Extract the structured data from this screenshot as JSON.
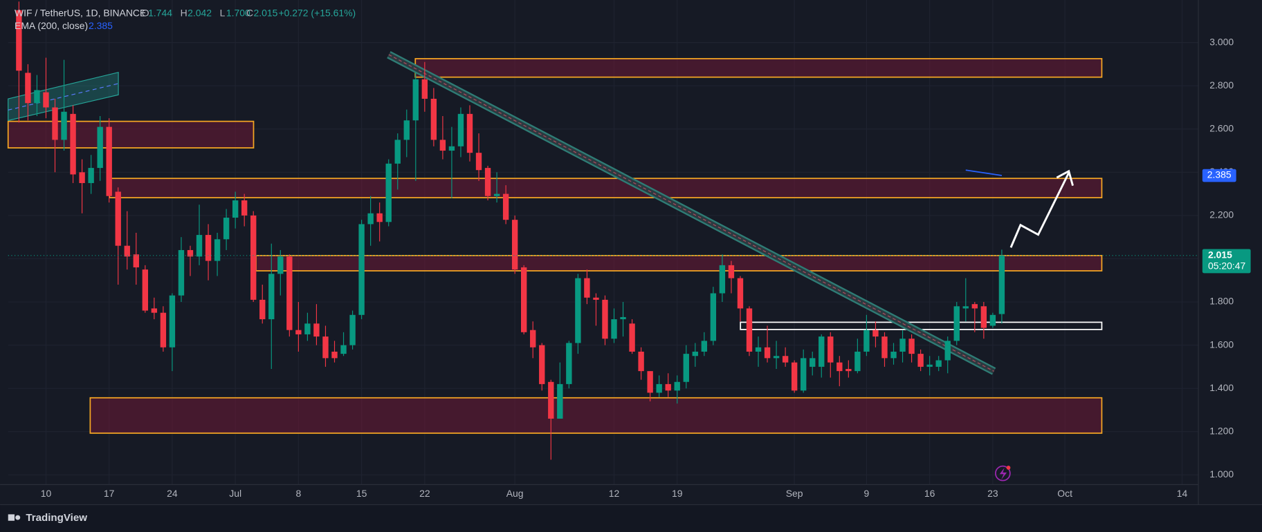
{
  "header": {
    "symbol": "WIF / TetherUS, 1D, BINANCE",
    "ohlc": [
      {
        "key": "O",
        "value": "1.744"
      },
      {
        "key": "H",
        "value": "2.042"
      },
      {
        "key": "L",
        "value": "1.700"
      },
      {
        "key": "C",
        "value": "2.015"
      }
    ],
    "change": "+0.272 (+15.61%)"
  },
  "brand": "TradingView",
  "countdown": "05:20:47",
  "chart_data": {
    "type": "candlestick",
    "up_color": "#089981",
    "down_color": "#f23645",
    "grid": true,
    "x": [
      7,
      8,
      9,
      10,
      11,
      12,
      13,
      14,
      15,
      16,
      17,
      18,
      19,
      20,
      21,
      22,
      23,
      24,
      25,
      26,
      27,
      28,
      29,
      30,
      31,
      32,
      33,
      34,
      35,
      36,
      37,
      38,
      39,
      40,
      41,
      42,
      43,
      44,
      45,
      46,
      47,
      48,
      49,
      50,
      51,
      52,
      53,
      54,
      55,
      56,
      57,
      58,
      59,
      60,
      61,
      62,
      63,
      64,
      65,
      66,
      67,
      68,
      69,
      70,
      71,
      72,
      73,
      74,
      75,
      76,
      77,
      78,
      79,
      80,
      81,
      82,
      83,
      84,
      85,
      86,
      87,
      88,
      89,
      90,
      91,
      92,
      93,
      94,
      95,
      96,
      97,
      98,
      99,
      100,
      101,
      102,
      103,
      104,
      105,
      106,
      107,
      108,
      109,
      110,
      111,
      112,
      113,
      114,
      115,
      116
    ],
    "open": [
      3.15,
      2.86,
      2.72,
      2.77,
      2.7,
      2.55,
      2.67,
      2.4,
      2.35,
      2.42,
      2.61,
      2.31,
      2.06,
      2.02,
      1.95,
      1.77,
      1.75,
      1.59,
      1.83,
      2.04,
      2.01,
      2.11,
      1.99,
      2.09,
      2.19,
      2.27,
      2.2,
      1.81,
      1.72,
      1.93,
      2.01,
      1.67,
      1.65,
      1.7,
      1.64,
      1.57,
      1.56,
      1.6,
      1.74,
      2.16,
      2.21,
      2.17,
      2.44,
      2.55,
      2.64,
      2.83,
      2.74,
      2.55,
      2.5,
      2.52,
      2.67,
      2.49,
      2.42,
      2.29,
      2.3,
      2.18,
      1.96,
      1.67,
      1.6,
      1.43,
      1.26,
      1.42,
      1.61,
      1.91,
      1.82,
      1.81,
      1.63,
      1.72,
      1.7,
      1.57,
      1.48,
      1.38,
      1.42,
      1.39,
      1.43,
      1.55,
      1.57,
      1.62,
      1.84,
      1.97,
      1.91,
      1.77,
      1.57,
      1.59,
      1.54,
      1.55,
      1.52,
      1.39,
      1.5,
      1.5,
      1.64,
      1.52,
      1.49,
      1.48,
      1.57,
      1.67,
      1.64,
      1.54,
      1.57,
      1.63,
      1.56,
      1.5,
      1.5,
      1.53,
      1.62,
      1.77,
      1.79,
      1.78,
      1.69,
      1.744
    ],
    "high": [
      3.19,
      2.9,
      2.85,
      2.93,
      2.74,
      2.92,
      2.71,
      2.46,
      2.48,
      2.66,
      2.65,
      2.33,
      2.22,
      2.12,
      1.97,
      1.82,
      1.78,
      1.84,
      2.1,
      2.06,
      2.25,
      2.16,
      2.12,
      2.23,
      2.31,
      2.3,
      2.22,
      1.88,
      2.07,
      2.04,
      2.02,
      1.8,
      1.75,
      1.79,
      1.69,
      1.62,
      1.66,
      1.76,
      2.18,
      2.29,
      2.26,
      2.46,
      2.58,
      2.69,
      2.86,
      2.91,
      2.79,
      2.66,
      2.61,
      2.7,
      2.71,
      2.58,
      2.43,
      2.4,
      2.34,
      2.2,
      1.97,
      1.71,
      1.61,
      1.44,
      1.52,
      1.62,
      1.93,
      1.95,
      1.84,
      1.83,
      1.77,
      1.8,
      1.72,
      1.59,
      1.48,
      1.46,
      1.47,
      1.46,
      1.6,
      1.61,
      1.66,
      1.87,
      2.02,
      1.99,
      1.92,
      1.78,
      1.64,
      1.69,
      1.62,
      1.59,
      1.53,
      1.58,
      1.57,
      1.65,
      1.66,
      1.55,
      1.53,
      1.63,
      1.74,
      1.71,
      1.66,
      1.61,
      1.67,
      1.65,
      1.58,
      1.55,
      1.55,
      1.64,
      1.8,
      1.91,
      1.8,
      1.8,
      1.75,
      2.042
    ],
    "low": [
      2.63,
      2.64,
      2.66,
      2.65,
      2.4,
      2.5,
      2.35,
      2.21,
      2.3,
      2.36,
      2.26,
      1.88,
      1.95,
      1.88,
      1.75,
      1.72,
      1.57,
      1.48,
      1.8,
      1.92,
      1.97,
      1.9,
      1.92,
      2.04,
      2.14,
      2.15,
      1.8,
      1.7,
      1.49,
      1.83,
      1.64,
      1.57,
      1.62,
      1.6,
      1.5,
      1.52,
      1.55,
      1.58,
      1.72,
      2.06,
      2.08,
      2.15,
      2.32,
      2.47,
      2.36,
      2.68,
      2.52,
      2.46,
      2.28,
      2.47,
      2.45,
      2.36,
      2.27,
      2.26,
      2.16,
      1.93,
      1.65,
      1.54,
      1.39,
      1.07,
      1.26,
      1.4,
      1.56,
      1.79,
      1.69,
      1.6,
      1.61,
      1.64,
      1.56,
      1.44,
      1.34,
      1.36,
      1.36,
      1.33,
      1.4,
      1.5,
      1.55,
      1.6,
      1.8,
      1.84,
      1.71,
      1.55,
      1.5,
      1.52,
      1.49,
      1.5,
      1.38,
      1.38,
      1.46,
      1.45,
      1.45,
      1.41,
      1.45,
      1.47,
      1.55,
      1.59,
      1.5,
      1.51,
      1.52,
      1.52,
      1.48,
      1.46,
      1.48,
      1.47,
      1.6,
      1.71,
      1.66,
      1.63,
      1.68,
      1.7
    ],
    "close": [
      2.87,
      2.72,
      2.78,
      2.7,
      2.55,
      2.68,
      2.39,
      2.35,
      2.42,
      2.61,
      2.29,
      2.06,
      2.01,
      1.96,
      1.76,
      1.75,
      1.59,
      1.83,
      2.04,
      2.01,
      2.11,
      1.99,
      2.09,
      2.19,
      2.27,
      2.2,
      1.81,
      1.72,
      1.93,
      2.01,
      1.67,
      1.65,
      1.7,
      1.64,
      1.54,
      1.54,
      1.6,
      1.74,
      2.16,
      2.21,
      2.17,
      2.44,
      2.55,
      2.64,
      2.83,
      2.74,
      2.55,
      2.5,
      2.52,
      2.67,
      2.49,
      2.41,
      2.29,
      2.3,
      2.18,
      1.95,
      1.66,
      1.59,
      1.42,
      1.26,
      1.42,
      1.61,
      1.91,
      1.82,
      1.81,
      1.63,
      1.72,
      1.73,
      1.57,
      1.48,
      1.38,
      1.42,
      1.39,
      1.43,
      1.56,
      1.57,
      1.62,
      1.84,
      1.97,
      1.91,
      1.77,
      1.57,
      1.59,
      1.54,
      1.55,
      1.52,
      1.39,
      1.54,
      1.54,
      1.64,
      1.52,
      1.48,
      1.48,
      1.57,
      1.67,
      1.64,
      1.54,
      1.57,
      1.63,
      1.56,
      1.5,
      1.51,
      1.53,
      1.62,
      1.78,
      1.78,
      1.77,
      1.68,
      1.74,
      2.015
    ],
    "ema": {
      "name": "EMA (200, close)",
      "color": "#2962ff",
      "x": [
        112,
        116
      ],
      "values": [
        2.41,
        2.385
      ]
    },
    "xlim": [
      5.8,
      137.8
    ],
    "xticks": [
      {
        "value": 10,
        "label": "10"
      },
      {
        "value": 17,
        "label": "17"
      },
      {
        "value": 24,
        "label": "24"
      },
      {
        "value": 31,
        "label": "Jul"
      },
      {
        "value": 38,
        "label": "8"
      },
      {
        "value": 45,
        "label": "15"
      },
      {
        "value": 52,
        "label": "22"
      },
      {
        "value": 62,
        "label": "Aug"
      },
      {
        "value": 73,
        "label": "12"
      },
      {
        "value": 80,
        "label": "19"
      },
      {
        "value": 93,
        "label": "Sep"
      },
      {
        "value": 101,
        "label": "9"
      },
      {
        "value": 108,
        "label": "16"
      },
      {
        "value": 115,
        "label": "23"
      },
      {
        "value": 123,
        "label": "Oct"
      },
      {
        "value": 136,
        "label": "14"
      }
    ],
    "ylim": [
      0.955,
      3.197
    ],
    "yticks": [
      {
        "value": 1,
        "label": "1.000"
      },
      {
        "value": 1.2,
        "label": "1.200"
      },
      {
        "value": 1.4,
        "label": "1.400"
      },
      {
        "value": 1.6,
        "label": "1.600"
      },
      {
        "value": 1.8,
        "label": "1.800"
      },
      {
        "value": 2,
        "label": "2.000"
      },
      {
        "value": 2.2,
        "label": "2.200"
      },
      {
        "value": 2.4,
        "label": "2.400"
      },
      {
        "value": 2.6,
        "label": "2.600"
      },
      {
        "value": 2.8,
        "label": "2.800"
      },
      {
        "value": 3,
        "label": "3.000"
      }
    ]
  }
}
